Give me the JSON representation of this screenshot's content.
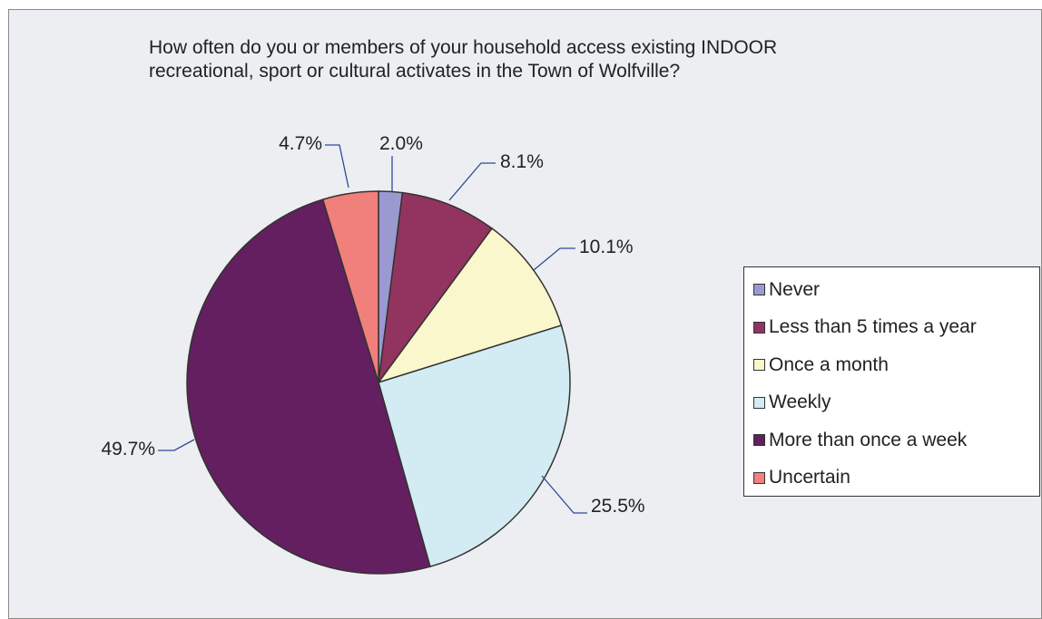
{
  "chart_data": {
    "type": "pie",
    "title": "How often do you or members of your household access existing INDOOR\nrecreational, sport or cultural activates in the Town of Wolfville?",
    "slices": [
      {
        "label": "Never",
        "value": 2.0,
        "display": "2.0%",
        "color": "#9b9ad0"
      },
      {
        "label": "Less than 5 times a year",
        "value": 8.1,
        "display": "8.1%",
        "color": "#92345f"
      },
      {
        "label": "Once a month",
        "value": 10.1,
        "display": "10.1%",
        "color": "#fbf7cc"
      },
      {
        "label": "Weekly",
        "value": 25.5,
        "display": "25.5%",
        "color": "#d3ebf3"
      },
      {
        "label": "More than once a week",
        "value": 49.7,
        "display": "49.7%",
        "color": "#631f5f"
      },
      {
        "label": "Uncertain",
        "value": 4.7,
        "display": "4.7%",
        "color": "#f17f7b"
      }
    ],
    "legend_position": "right",
    "start_angle": "12 o'clock, clockwise"
  }
}
